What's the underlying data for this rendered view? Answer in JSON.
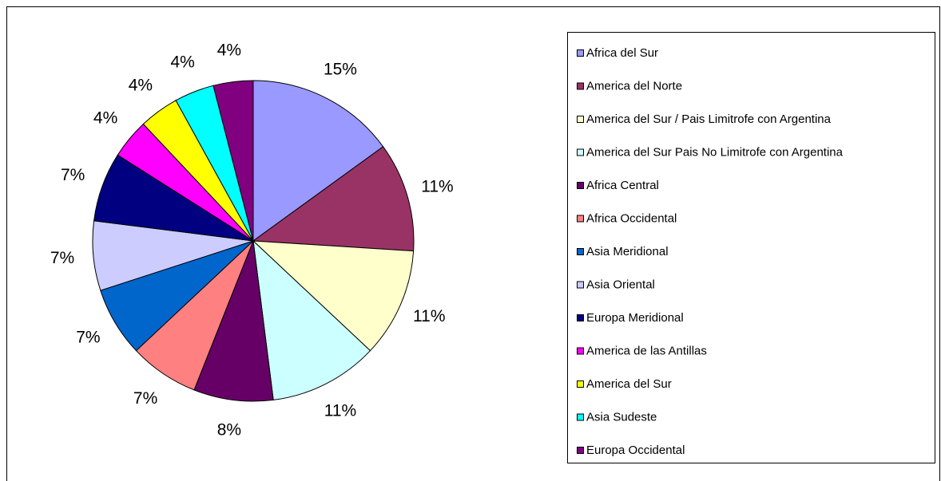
{
  "chart_data": {
    "type": "pie",
    "categories": [
      "Africa del Sur",
      "America del Norte",
      "America del Sur / Pais Limitrofe con Argentina",
      "America del Sur Pais No Limitrofe con Argentina",
      "Africa Central",
      "Africa Occidental",
      "Asia Meridional",
      "Asia Oriental",
      "Europa Meridional",
      "America de las Antillas",
      "America del Sur",
      "Asia Sudeste",
      "Europa Occidental"
    ],
    "values": [
      15,
      11,
      11,
      11,
      8,
      7,
      7,
      7,
      7,
      4,
      4,
      4,
      4
    ],
    "value_labels": [
      "15%",
      "11%",
      "11%",
      "11%",
      "8%",
      "7%",
      "7%",
      "7%",
      "7%",
      "4%",
      "4%",
      "4%",
      "4%"
    ],
    "colors": [
      "#9999ff",
      "#993366",
      "#ffffcc",
      "#ccffff",
      "#660066",
      "#ff8080",
      "#0066cc",
      "#ccccff",
      "#000080",
      "#ff00ff",
      "#ffff00",
      "#00ffff",
      "#800080"
    ],
    "legend": "right"
  }
}
